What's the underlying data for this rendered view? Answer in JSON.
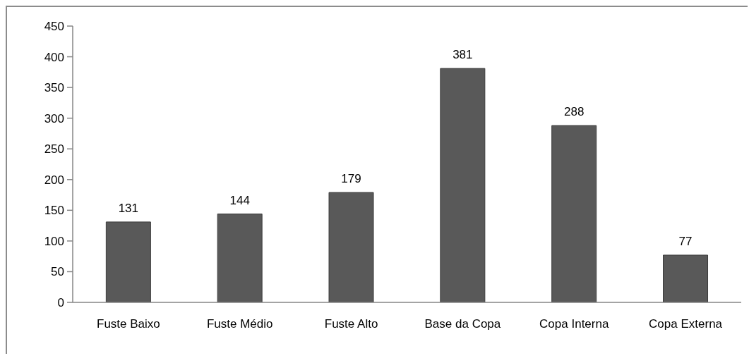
{
  "chart_data": {
    "type": "bar",
    "categories": [
      "Fuste Baixo",
      "Fuste Médio",
      "Fuste Alto",
      "Base da Copa",
      "Copa Interna",
      "Copa Externa"
    ],
    "values": [
      131,
      144,
      179,
      381,
      288,
      77
    ],
    "color": "#595959",
    "ylim": [
      0,
      450
    ],
    "yticks": [
      0,
      50,
      100,
      150,
      200,
      250,
      300,
      350,
      400,
      450
    ],
    "grid": false,
    "legend": false,
    "data_labels": true
  }
}
